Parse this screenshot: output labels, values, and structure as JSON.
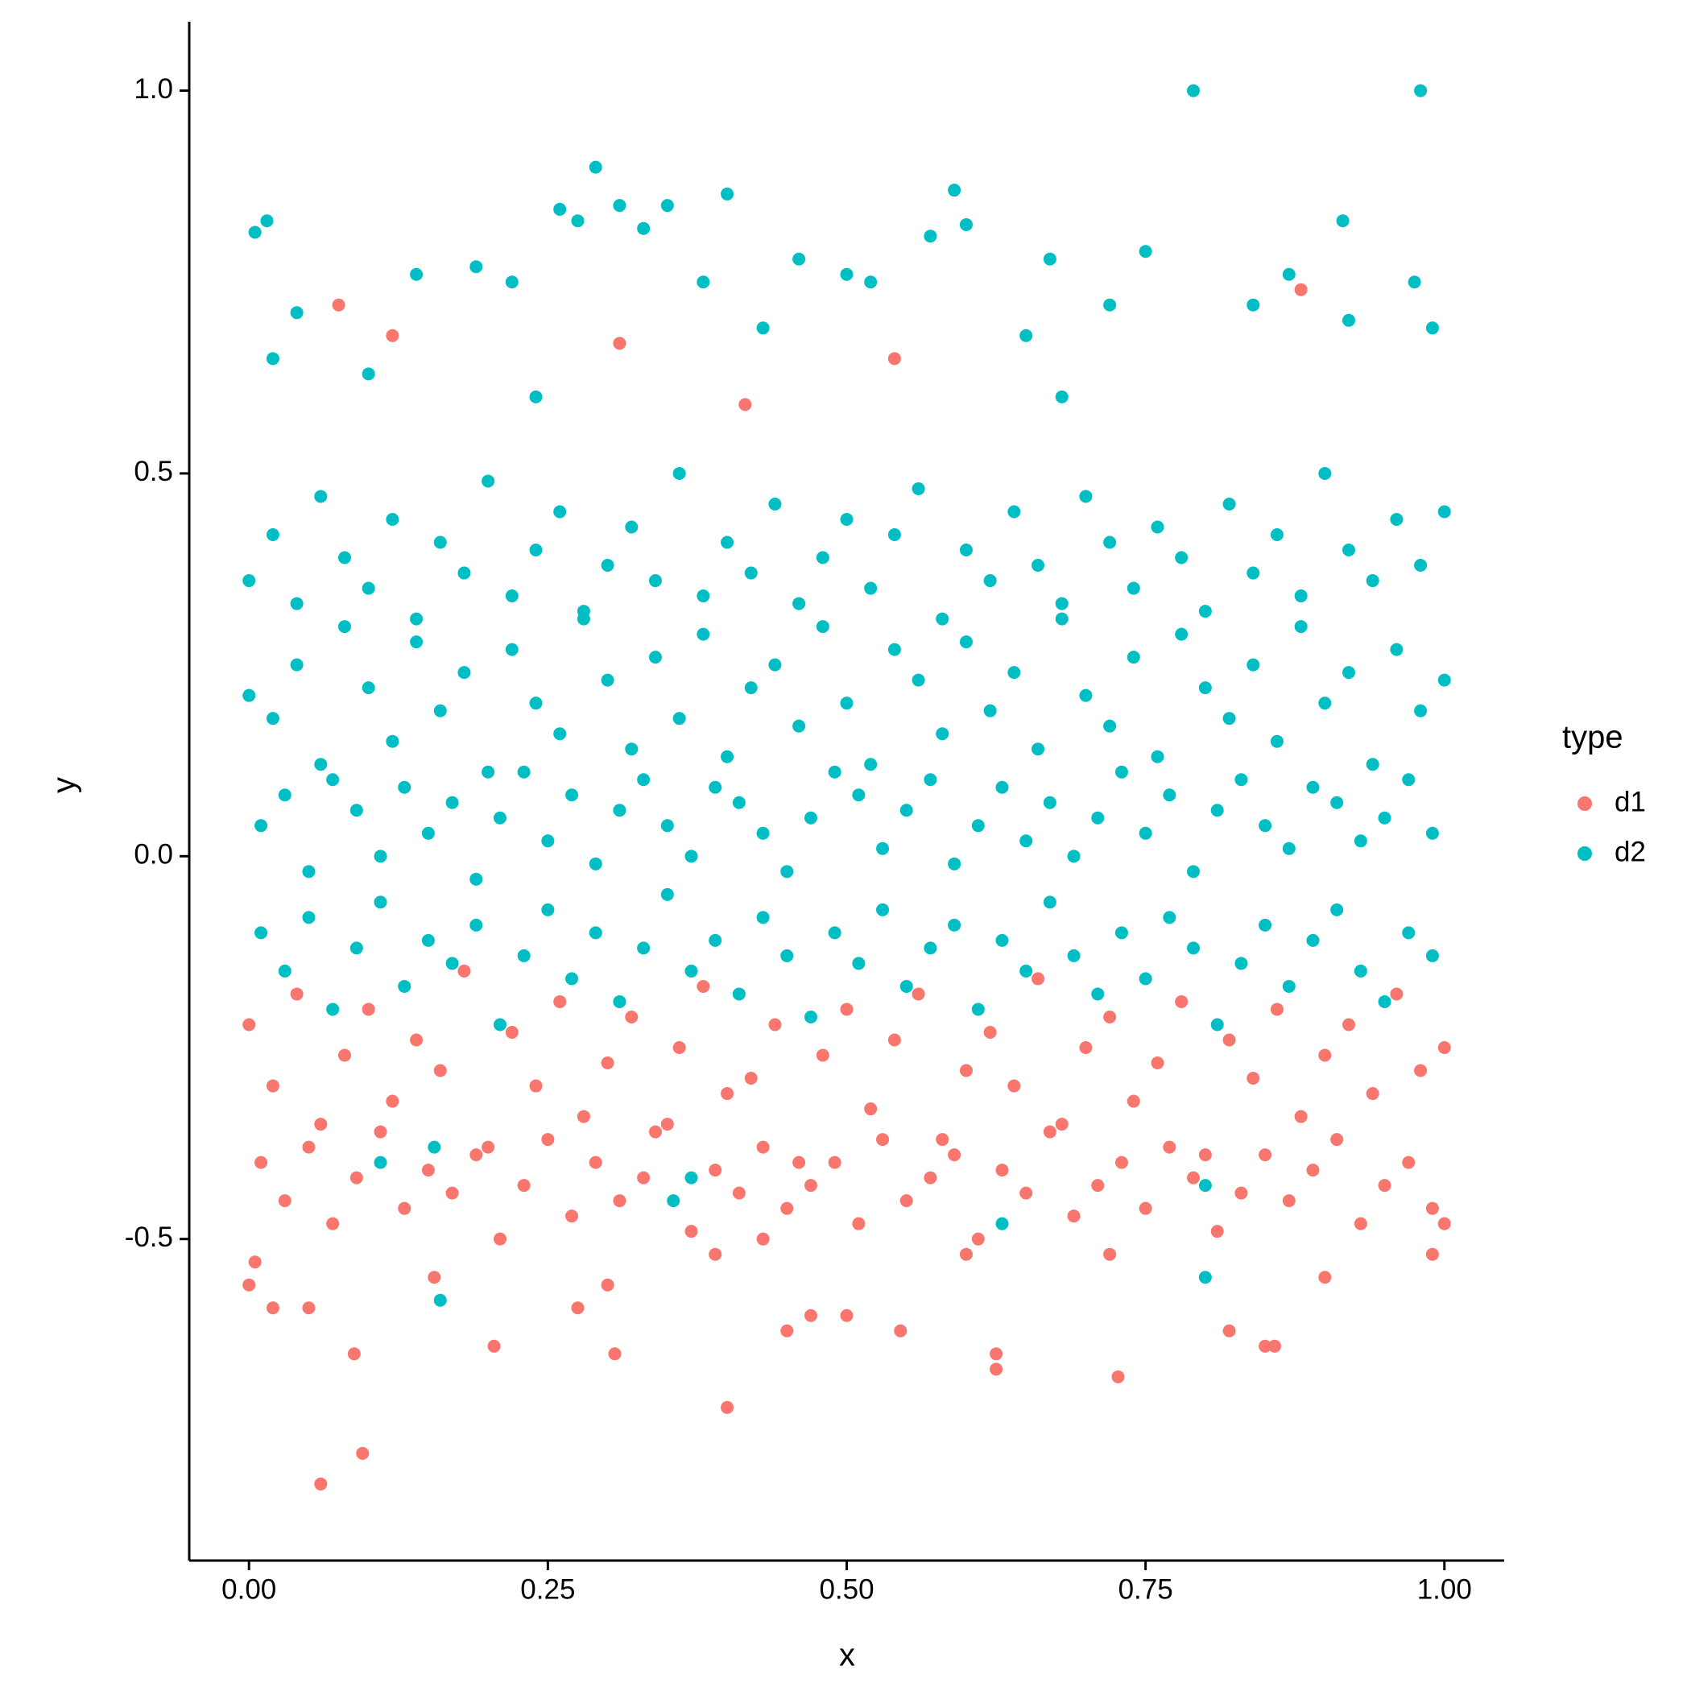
{
  "chart_data": {
    "type": "scatter",
    "x_label": "x",
    "y_label": "y",
    "legend_title": "type",
    "legend": "right",
    "xlim": [
      -0.05,
      1.05
    ],
    "ylim": [
      -0.92,
      1.09
    ],
    "xticks": [
      {
        "value": 0,
        "label": "0.00"
      },
      {
        "value": 0.25,
        "label": "0.25"
      },
      {
        "value": 0.5,
        "label": "0.50"
      },
      {
        "value": 0.75,
        "label": "0.75"
      },
      {
        "value": 1,
        "label": "1.00"
      }
    ],
    "yticks": [
      -0.5,
      {
        "value": 0,
        "label": "0.0"
      },
      0.5,
      {
        "value": 1,
        "label": "1.0"
      }
    ],
    "series": [
      {
        "name": "d1",
        "color": "#F8766D",
        "x": [
          0,
          0.02,
          0.04,
          0.06,
          0.08,
          0.1,
          0.12,
          0.14,
          0.16,
          0.18,
          0.2,
          0.22,
          0.24,
          0.26,
          0.28,
          0.3,
          0.32,
          0.34,
          0.36,
          0.38,
          0.4,
          0.42,
          0.44,
          0.46,
          0.48,
          0.5,
          0.52,
          0.54,
          0.56,
          0.58,
          0.6,
          0.62,
          0.64,
          0.66,
          0.68,
          0.7,
          0.72,
          0.74,
          0.76,
          0.78,
          0.8,
          0.82,
          0.84,
          0.86,
          0.88,
          0.9,
          0.92,
          0.94,
          0.96,
          0.98,
          1,
          0.01,
          0.03,
          0.05,
          0.07,
          0.09,
          0.11,
          0.13,
          0.15,
          0.17,
          0.19,
          0.21,
          0.23,
          0.25,
          0.27,
          0.29,
          0.31,
          0.33,
          0.35,
          0.37,
          0.39,
          0.41,
          0.43,
          0.45,
          0.47,
          0.49,
          0.51,
          0.53,
          0.55,
          0.57,
          0.59,
          0.61,
          0.63,
          0.65,
          0.67,
          0.69,
          0.71,
          0.73,
          0.75,
          0.77,
          0.79,
          0.81,
          0.83,
          0.85,
          0.87,
          0.89,
          0.91,
          0.93,
          0.95,
          0.97,
          0.99,
          0.06,
          0.095,
          0.4,
          0.727,
          0.625,
          0.625,
          0.088,
          0.205,
          0.306,
          0.45,
          0.545,
          0.85,
          0.858,
          0.82,
          0.02,
          0.05,
          0,
          0.005,
          0.155,
          0.3,
          0.275,
          0.5,
          0.47,
          0.43,
          0.39,
          0.6,
          0.72,
          0.9,
          0.99,
          1,
          0.075,
          0.12,
          0.88,
          0.31,
          0.54,
          0.415
        ],
        "values": [
          -0.22,
          -0.3,
          -0.18,
          -0.35,
          -0.26,
          -0.2,
          -0.32,
          -0.24,
          -0.28,
          -0.15,
          -0.38,
          -0.23,
          -0.3,
          -0.19,
          -0.34,
          -0.27,
          -0.21,
          -0.36,
          -0.25,
          -0.17,
          -0.31,
          -0.29,
          -0.22,
          -0.4,
          -0.26,
          -0.2,
          -0.33,
          -0.24,
          -0.18,
          -0.37,
          -0.28,
          -0.23,
          -0.3,
          -0.16,
          -0.35,
          -0.25,
          -0.21,
          -0.32,
          -0.27,
          -0.19,
          -0.39,
          -0.24,
          -0.29,
          -0.2,
          -0.34,
          -0.26,
          -0.22,
          -0.31,
          -0.18,
          -0.28,
          -0.25,
          -0.4,
          -0.45,
          -0.38,
          -0.48,
          -0.42,
          -0.36,
          -0.46,
          -0.41,
          -0.44,
          -0.39,
          -0.5,
          -0.43,
          -0.37,
          -0.47,
          -0.4,
          -0.45,
          -0.42,
          -0.35,
          -0.49,
          -0.41,
          -0.44,
          -0.38,
          -0.46,
          -0.43,
          -0.4,
          -0.48,
          -0.37,
          -0.45,
          -0.42,
          -0.39,
          -0.5,
          -0.41,
          -0.44,
          -0.36,
          -0.47,
          -0.43,
          -0.4,
          -0.46,
          -0.38,
          -0.42,
          -0.49,
          -0.44,
          -0.39,
          -0.45,
          -0.41,
          -0.37,
          -0.48,
          -0.43,
          -0.4,
          -0.46,
          -0.82,
          -0.78,
          -0.72,
          -0.68,
          -0.65,
          -0.67,
          -0.65,
          -0.64,
          -0.65,
          -0.62,
          -0.62,
          -0.64,
          -0.64,
          -0.62,
          -0.59,
          -0.59,
          -0.56,
          -0.53,
          -0.55,
          -0.56,
          -0.59,
          -0.6,
          -0.6,
          -0.5,
          -0.52,
          -0.52,
          -0.52,
          -0.55,
          -0.52,
          -0.48,
          0.72,
          0.68,
          0.74,
          0.67,
          0.65,
          0.59
        ]
      },
      {
        "name": "d2",
        "color": "#00BFC4",
        "x": [
          0,
          0.02,
          0.04,
          0.06,
          0.08,
          0.1,
          0.12,
          0.14,
          0.16,
          0.18,
          0.2,
          0.22,
          0.24,
          0.26,
          0.28,
          0.3,
          0.32,
          0.34,
          0.36,
          0.38,
          0.4,
          0.42,
          0.44,
          0.46,
          0.48,
          0.5,
          0.52,
          0.54,
          0.56,
          0.58,
          0.6,
          0.62,
          0.64,
          0.66,
          0.68,
          0.7,
          0.72,
          0.74,
          0.76,
          0.78,
          0.8,
          0.82,
          0.84,
          0.86,
          0.88,
          0.9,
          0.92,
          0.94,
          0.96,
          0.98,
          1,
          0.01,
          0.03,
          0.05,
          0.07,
          0.09,
          0.11,
          0.13,
          0.15,
          0.17,
          0.19,
          0.21,
          0.23,
          0.25,
          0.27,
          0.29,
          0.31,
          0.33,
          0.35,
          0.37,
          0.39,
          0.41,
          0.43,
          0.45,
          0.47,
          0.49,
          0.51,
          0.53,
          0.55,
          0.57,
          0.59,
          0.61,
          0.63,
          0.65,
          0.67,
          0.69,
          0.71,
          0.73,
          0.75,
          0.77,
          0.79,
          0.81,
          0.83,
          0.85,
          0.87,
          0.89,
          0.91,
          0.93,
          0.95,
          0.97,
          0.99,
          0,
          0.02,
          0.04,
          0.06,
          0.08,
          0.1,
          0.12,
          0.14,
          0.16,
          0.18,
          0.2,
          0.22,
          0.24,
          0.26,
          0.28,
          0.3,
          0.32,
          0.34,
          0.36,
          0.38,
          0.4,
          0.42,
          0.44,
          0.46,
          0.48,
          0.5,
          0.52,
          0.54,
          0.56,
          0.58,
          0.6,
          0.62,
          0.64,
          0.66,
          0.68,
          0.7,
          0.72,
          0.74,
          0.76,
          0.78,
          0.8,
          0.82,
          0.84,
          0.86,
          0.88,
          0.9,
          0.92,
          0.94,
          0.96,
          0.98,
          1,
          0.01,
          0.03,
          0.05,
          0.07,
          0.09,
          0.11,
          0.13,
          0.15,
          0.17,
          0.19,
          0.21,
          0.23,
          0.25,
          0.27,
          0.29,
          0.31,
          0.33,
          0.35,
          0.37,
          0.39,
          0.41,
          0.43,
          0.45,
          0.47,
          0.49,
          0.51,
          0.53,
          0.55,
          0.57,
          0.59,
          0.61,
          0.63,
          0.65,
          0.67,
          0.69,
          0.71,
          0.73,
          0.75,
          0.77,
          0.79,
          0.81,
          0.83,
          0.85,
          0.87,
          0.89,
          0.91,
          0.93,
          0.95,
          0.97,
          0.99,
          0.79,
          0.98,
          0.29,
          0.59,
          0.4,
          0.005,
          0.015,
          0.26,
          0.31,
          0.35,
          0.915,
          0.6,
          0.57,
          0.33,
          0.275,
          0.46,
          0.5,
          0.52,
          0.75,
          0.67,
          0.87,
          0.975,
          0.16,
          0.8,
          0.63,
          0.355,
          0.8,
          0.37,
          0.155,
          0.11,
          0.02,
          0.1,
          0.14,
          0.19,
          0.22,
          0.38,
          0.43,
          0.65,
          0.72,
          0.84,
          0.92,
          0.99,
          0.04,
          0.24,
          0.68
        ],
        "values": [
          0.21,
          0.18,
          0.25,
          0.12,
          0.3,
          0.22,
          0.15,
          0.28,
          0.19,
          0.24,
          0.11,
          0.27,
          0.2,
          0.16,
          0.31,
          0.23,
          0.14,
          0.26,
          0.18,
          0.29,
          0.13,
          0.22,
          0.25,
          0.17,
          0.3,
          0.2,
          0.12,
          0.27,
          0.23,
          0.16,
          0.28,
          0.19,
          0.24,
          0.14,
          0.31,
          0.21,
          0.17,
          0.26,
          0.13,
          0.29,
          0.22,
          0.18,
          0.25,
          0.15,
          0.3,
          0.2,
          0.24,
          0.12,
          0.27,
          0.19,
          0.23,
          0.04,
          0.08,
          -0.02,
          0.1,
          0.06,
          0,
          0.09,
          0.03,
          0.07,
          -0.03,
          0.05,
          0.11,
          0.02,
          0.08,
          -0.01,
          0.06,
          0.1,
          0.04,
          0,
          0.09,
          0.07,
          0.03,
          -0.02,
          0.05,
          0.11,
          0.08,
          0.01,
          0.06,
          0.1,
          -0.01,
          0.04,
          0.09,
          0.02,
          0.07,
          0,
          0.05,
          0.11,
          0.03,
          0.08,
          -0.02,
          0.06,
          0.1,
          0.04,
          0.01,
          0.09,
          0.07,
          0.02,
          0.05,
          0.1,
          0.03,
          0.36,
          0.42,
          0.33,
          0.47,
          0.39,
          0.35,
          0.44,
          0.31,
          0.41,
          0.37,
          0.49,
          0.34,
          0.4,
          0.45,
          0.32,
          0.38,
          0.43,
          0.36,
          0.5,
          0.34,
          0.41,
          0.37,
          0.46,
          0.33,
          0.39,
          0.44,
          0.35,
          0.42,
          0.48,
          0.31,
          0.4,
          0.36,
          0.45,
          0.38,
          0.33,
          0.47,
          0.41,
          0.35,
          0.43,
          0.39,
          0.32,
          0.46,
          0.37,
          0.42,
          0.34,
          0.5,
          0.4,
          0.36,
          0.44,
          0.38,
          0.45,
          -0.1,
          -0.15,
          -0.08,
          -0.2,
          -0.12,
          -0.06,
          -0.17,
          -0.11,
          -0.14,
          -0.09,
          -0.22,
          -0.13,
          -0.07,
          -0.16,
          -0.1,
          -0.19,
          -0.12,
          -0.05,
          -0.15,
          -0.11,
          -0.18,
          -0.08,
          -0.13,
          -0.21,
          -0.1,
          -0.14,
          -0.07,
          -0.17,
          -0.12,
          -0.09,
          -0.2,
          -0.11,
          -0.15,
          -0.06,
          -0.13,
          -0.18,
          -0.1,
          -0.16,
          -0.08,
          -0.12,
          -0.22,
          -0.14,
          -0.09,
          -0.17,
          -0.11,
          -0.07,
          -0.15,
          -0.19,
          -0.1,
          -0.13,
          1,
          1,
          0.9,
          0.87,
          0.865,
          0.815,
          0.83,
          0.845,
          0.85,
          0.85,
          0.83,
          0.825,
          0.81,
          0.82,
          0.83,
          0.78,
          0.76,
          0.75,
          0.79,
          0.78,
          0.76,
          0.75,
          -0.58,
          -0.55,
          -0.48,
          -0.45,
          -0.43,
          -0.42,
          -0.38,
          -0.4,
          0.65,
          0.63,
          0.76,
          0.77,
          0.75,
          0.75,
          0.69,
          0.68,
          0.72,
          0.72,
          0.7,
          0.69,
          0.71,
          0.6,
          0.6
        ]
      }
    ]
  }
}
